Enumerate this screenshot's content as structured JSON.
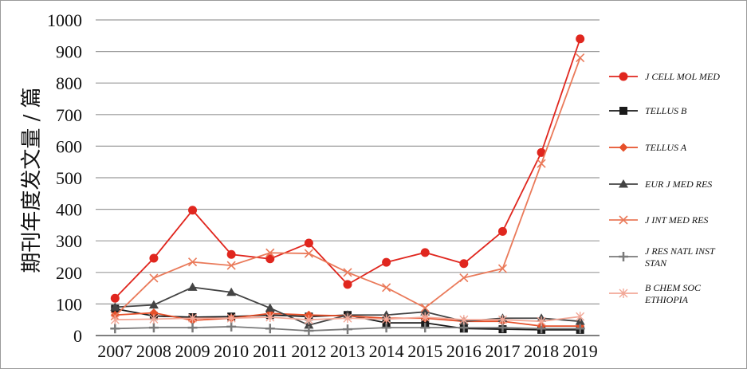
{
  "chart_data": {
    "type": "line",
    "ylabel": "期刊年度发文量 / 篇",
    "xlabel": "",
    "title": "",
    "x": [
      "2007",
      "2008",
      "2009",
      "2010",
      "2011",
      "2012",
      "2013",
      "2014",
      "2015",
      "2016",
      "2017",
      "2018",
      "2019"
    ],
    "ylim": [
      0,
      1000
    ],
    "yticks": [
      "0",
      "100",
      "200",
      "300",
      "400",
      "500",
      "600",
      "700",
      "800",
      "900",
      "1000"
    ],
    "grid": "horizontal",
    "legend_position": "right",
    "series": [
      {
        "name": "J CELL MOL MED",
        "name_lines": [
          "J CELL MOL MED"
        ],
        "color": "#e0261e",
        "marker": "circle",
        "values": [
          118,
          245,
          397,
          257,
          243,
          293,
          162,
          232,
          263,
          228,
          330,
          580,
          940
        ]
      },
      {
        "name": "TELLUS B",
        "name_lines": [
          "TELLUS B"
        ],
        "color": "#1a1a1a",
        "marker": "square",
        "values": [
          85,
          62,
          58,
          60,
          65,
          60,
          65,
          40,
          40,
          22,
          20,
          18,
          18
        ]
      },
      {
        "name": "TELLUS A",
        "name_lines": [
          "TELLUS A"
        ],
        "color": "#e6502a",
        "marker": "diamond",
        "values": [
          65,
          72,
          48,
          55,
          70,
          65,
          62,
          55,
          55,
          45,
          45,
          30,
          30
        ]
      },
      {
        "name": "EUR J MED RES",
        "name_lines": [
          "EUR J MED RES"
        ],
        "color": "#444444",
        "marker": "triangle",
        "values": [
          90,
          97,
          153,
          137,
          87,
          33,
          65,
          65,
          75,
          45,
          55,
          55,
          45
        ]
      },
      {
        "name": "J INT MED RES",
        "name_lines": [
          "J INT MED RES"
        ],
        "color": "#ea7a5a",
        "marker": "x",
        "values": [
          62,
          182,
          233,
          222,
          262,
          260,
          200,
          152,
          88,
          183,
          212,
          545,
          880
        ]
      },
      {
        "name": "J RES NATL INST STAN",
        "name_lines": [
          "J RES NATL INST",
          "STAN"
        ],
        "color": "#7a7a7a",
        "marker": "plus",
        "values": [
          22,
          25,
          25,
          28,
          22,
          15,
          20,
          25,
          25,
          25,
          25,
          22,
          22
        ]
      },
      {
        "name": "B CHEM SOC ETHIOPIA",
        "name_lines": [
          "B CHEM SOC",
          "ETHIOPIA"
        ],
        "color": "#f2a898",
        "marker": "star",
        "values": [
          50,
          52,
          55,
          55,
          58,
          50,
          55,
          52,
          58,
          50,
          50,
          45,
          60
        ]
      }
    ]
  }
}
